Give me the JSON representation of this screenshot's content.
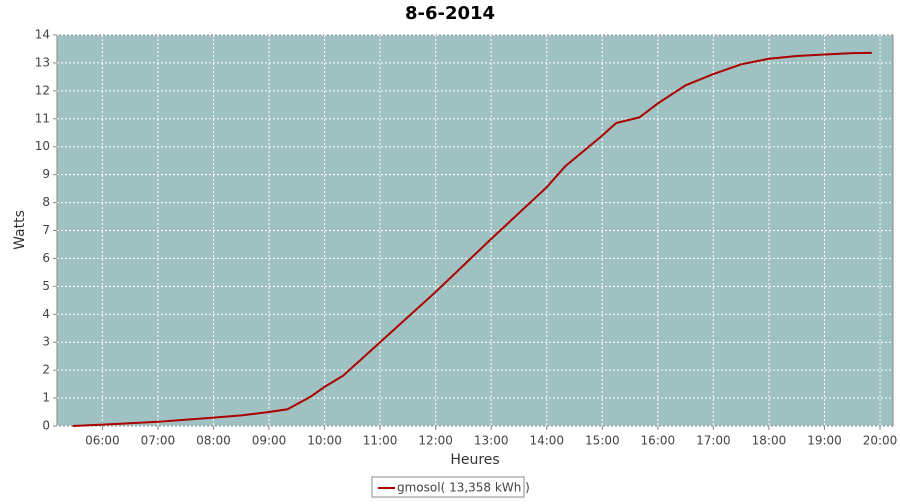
{
  "chart_data": {
    "type": "line",
    "title": "8-6-2014",
    "x_label": "Heures",
    "y_label": "Watts",
    "x": [
      "05:28",
      "06:00",
      "07:00",
      "08:00",
      "08:30",
      "09:00",
      "09:20",
      "09:45",
      "10:00",
      "10:20",
      "11:00",
      "12:00",
      "13:00",
      "14:00",
      "14:20",
      "15:00",
      "15:15",
      "15:40",
      "16:00",
      "16:30",
      "17:00",
      "17:30",
      "18:00",
      "18:30",
      "19:00",
      "19:30",
      "19:51"
    ],
    "series": [
      {
        "name": "gmosol( 13,358 kWh )",
        "color": "#aa0000",
        "values": [
          0,
          0.05,
          0.15,
          0.3,
          0.38,
          0.5,
          0.6,
          1.05,
          1.4,
          1.8,
          3.0,
          4.8,
          6.7,
          8.55,
          9.3,
          10.4,
          10.85,
          11.05,
          11.55,
          12.2,
          12.6,
          12.95,
          13.15,
          13.25,
          13.3,
          13.35,
          13.36
        ]
      }
    ],
    "xlim": [
      "05:11",
      "20:14"
    ],
    "xticks": [
      "06:00",
      "07:00",
      "08:00",
      "09:00",
      "10:00",
      "11:00",
      "12:00",
      "13:00",
      "14:00",
      "15:00",
      "16:00",
      "17:00",
      "18:00",
      "19:00",
      "20:00"
    ],
    "ylim": [
      0,
      14
    ],
    "yticks": [
      0,
      1,
      2,
      3,
      4,
      5,
      6,
      7,
      8,
      9,
      10,
      11,
      12,
      13,
      14
    ],
    "grid": true,
    "plot_background": "#9fc1c1",
    "legend": "bottom"
  }
}
